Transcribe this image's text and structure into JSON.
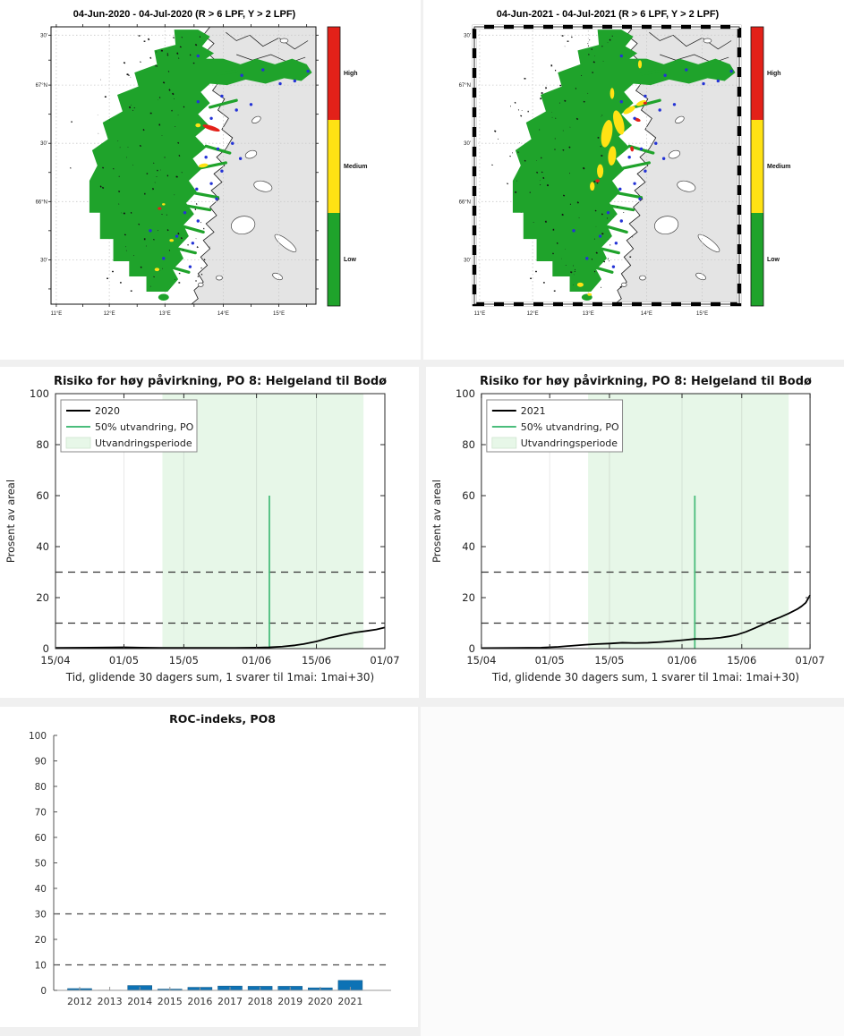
{
  "maps": {
    "panels": [
      {
        "title": "04-Jun-2020  - 04-Jul-2020  (R > 6 LPF, Y > 2 LPF)",
        "year": "2020",
        "frame_style": "thin-solid"
      },
      {
        "title": "04-Jun-2021  - 04-Jul-2021  (R > 6 LPF, Y > 2 LPF)",
        "year": "2021",
        "frame_style": "bold-dashed"
      }
    ],
    "lat_tick_labels": [
      "30'",
      "67°N",
      "30'",
      "66°N",
      "30'"
    ],
    "lon_tick_labels": [
      "11°E",
      "12°E",
      "13°E",
      "14°E",
      "15°E"
    ],
    "colorbar": {
      "labels": [
        "High",
        "Medium",
        "Low"
      ],
      "colors": [
        "#e32119",
        "#ffe214",
        "#1fa32b"
      ]
    },
    "colors": {
      "risk_low_area": "#1fa32b",
      "risk_medium": "#ffe214",
      "risk_high": "#e32119",
      "land": "#e4e4e4",
      "sea": "#ffffff",
      "station_dot": "#2433d6",
      "coastline": "#1a1a1a"
    }
  },
  "chart_data": [
    {
      "type": "line",
      "panel": "middle-left",
      "title": "Risiko for høy påvirkning, PO 8: Helgeland til Bodø",
      "xlabel": "Tid, glidende 30 dagers sum, 1 svarer til 1mai: 1mai+30)",
      "ylabel": "Prosent av areal",
      "ylim": [
        0,
        100
      ],
      "yticks": [
        0,
        20,
        40,
        60,
        80,
        100
      ],
      "xtick_labels": [
        "15/04",
        "01/05",
        "15/05",
        "01/06",
        "15/06",
        "01/07"
      ],
      "xtick_days": [
        0,
        16,
        30,
        47,
        61,
        77
      ],
      "x_span_days": 77,
      "dashed_hlines": [
        10,
        30
      ],
      "legend": [
        "2020",
        "50% utvandring, PO",
        "Utvandringsperiode"
      ],
      "migration_band_days": [
        25,
        72
      ],
      "half_migration": {
        "day": 50,
        "top_value": 60
      },
      "series": [
        {
          "name": "2020",
          "color": "#000000",
          "points": [
            [
              0,
              0.3
            ],
            [
              8,
              0.4
            ],
            [
              16,
              0.5
            ],
            [
              20,
              0.4
            ],
            [
              25,
              0.3
            ],
            [
              30,
              0.3
            ],
            [
              36,
              0.3
            ],
            [
              42,
              0.3
            ],
            [
              47,
              0.4
            ],
            [
              50,
              0.5
            ],
            [
              53,
              0.8
            ],
            [
              56,
              1.3
            ],
            [
              58,
              1.8
            ],
            [
              61,
              2.8
            ],
            [
              64,
              4.2
            ],
            [
              67,
              5.3
            ],
            [
              70,
              6.3
            ],
            [
              73,
              7.0
            ],
            [
              75,
              7.5
            ],
            [
              77,
              8.3
            ]
          ]
        }
      ],
      "colors": {
        "band": "#e7f7e8",
        "half_migration_line": "#4bbd7c",
        "dashed": "#333333"
      }
    },
    {
      "type": "line",
      "panel": "middle-right",
      "title": "Risiko for høy påvirkning, PO 8: Helgeland til Bodø",
      "xlabel": "Tid, glidende 30 dagers sum, 1 svarer til 1mai: 1mai+30)",
      "ylabel": "Prosent av areal",
      "ylim": [
        0,
        100
      ],
      "yticks": [
        0,
        20,
        40,
        60,
        80,
        100
      ],
      "xtick_labels": [
        "15/04",
        "01/05",
        "15/05",
        "01/06",
        "15/06",
        "01/07"
      ],
      "xtick_days": [
        0,
        16,
        30,
        47,
        61,
        77
      ],
      "x_span_days": 77,
      "dashed_hlines": [
        10,
        30
      ],
      "legend": [
        "2021",
        "50% utvandring, PO",
        "Utvandringsperiode"
      ],
      "migration_band_days": [
        25,
        72
      ],
      "half_migration": {
        "day": 50,
        "top_value": 60
      },
      "series": [
        {
          "name": "2021",
          "color": "#000000",
          "points": [
            [
              0,
              0.2
            ],
            [
              8,
              0.3
            ],
            [
              14,
              0.4
            ],
            [
              18,
              0.7
            ],
            [
              21,
              1.1
            ],
            [
              24,
              1.5
            ],
            [
              27,
              1.8
            ],
            [
              30,
              2.0
            ],
            [
              33,
              2.3
            ],
            [
              36,
              2.2
            ],
            [
              39,
              2.3
            ],
            [
              42,
              2.6
            ],
            [
              45,
              3.0
            ],
            [
              47,
              3.3
            ],
            [
              50,
              3.8
            ],
            [
              52,
              3.8
            ],
            [
              54,
              4.0
            ],
            [
              56,
              4.3
            ],
            [
              58,
              4.8
            ],
            [
              60,
              5.5
            ],
            [
              62,
              6.6
            ],
            [
              64,
              8.0
            ],
            [
              66,
              9.5
            ],
            [
              68,
              11.0
            ],
            [
              70,
              12.3
            ],
            [
              72,
              13.8
            ],
            [
              74,
              15.5
            ],
            [
              75,
              16.6
            ],
            [
              76,
              18.0
            ],
            [
              77,
              21.0
            ]
          ]
        }
      ],
      "colors": {
        "band": "#e7f7e8",
        "half_migration_line": "#4bbd7c",
        "dashed": "#333333"
      }
    },
    {
      "type": "bar",
      "panel": "bottom-left",
      "title": "ROC-indeks, PO8",
      "categories": [
        "2012",
        "2013",
        "2014",
        "2015",
        "2016",
        "2017",
        "2018",
        "2019",
        "2020",
        "2021"
      ],
      "values": [
        0.7,
        0.1,
        1.9,
        0.5,
        1.2,
        1.7,
        1.6,
        1.6,
        1.0,
        3.9
      ],
      "ylim": [
        0,
        100
      ],
      "yticks": [
        0,
        10,
        20,
        30,
        40,
        50,
        60,
        70,
        80,
        90,
        100
      ],
      "dashed_hlines": [
        10,
        30
      ],
      "bar_color": "#0d72b5"
    }
  ]
}
